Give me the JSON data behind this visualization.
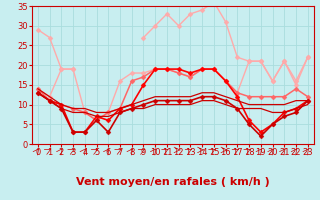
{
  "xlabel": "Vent moyen/en rafales ( km/h )",
  "background_color": "#c8eef0",
  "grid_color": "#aadddd",
  "xlim": [
    -0.5,
    23.5
  ],
  "ylim": [
    0,
    35
  ],
  "yticks": [
    0,
    5,
    10,
    15,
    20,
    25,
    30,
    35
  ],
  "xticks": [
    0,
    1,
    2,
    3,
    4,
    5,
    6,
    7,
    8,
    9,
    10,
    11,
    12,
    13,
    14,
    15,
    16,
    17,
    18,
    19,
    20,
    21,
    22,
    23
  ],
  "series": [
    {
      "y": [
        29,
        27,
        19,
        19,
        null,
        null,
        null,
        null,
        null,
        27,
        30,
        33,
        30,
        33,
        34,
        36,
        31,
        22,
        21,
        21,
        16,
        21,
        16,
        22
      ],
      "color": "#ffaaaa",
      "marker": "D",
      "markersize": 2.5,
      "linewidth": 1.0
    },
    {
      "y": [
        14,
        12,
        19,
        19,
        8,
        6,
        8,
        16,
        18,
        18,
        19,
        19,
        18,
        17,
        19,
        19,
        16,
        13,
        21,
        21,
        16,
        21,
        15,
        22
      ],
      "color": "#ffaaaa",
      "marker": "D",
      "markersize": 2.5,
      "linewidth": 1.0
    },
    {
      "y": [
        14,
        11,
        10,
        9,
        8,
        6,
        8,
        9,
        16,
        17,
        19,
        19,
        18,
        17,
        19,
        19,
        16,
        13,
        12,
        12,
        12,
        12,
        14,
        12
      ],
      "color": "#ff6666",
      "marker": "D",
      "markersize": 2.5,
      "linewidth": 1.1
    },
    {
      "y": [
        13,
        11,
        10,
        3,
        3,
        7,
        6,
        9,
        10,
        15,
        19,
        19,
        19,
        18,
        19,
        19,
        16,
        12,
        6,
        3,
        5,
        8,
        9,
        11
      ],
      "color": "#ff0000",
      "marker": "D",
      "markersize": 2.5,
      "linewidth": 1.2
    },
    {
      "y": [
        13,
        11,
        9,
        3,
        3,
        6,
        3,
        8,
        9,
        10,
        11,
        11,
        11,
        11,
        12,
        12,
        11,
        9,
        5,
        2,
        5,
        7,
        8,
        11
      ],
      "color": "#cc0000",
      "marker": "D",
      "markersize": 2.5,
      "linewidth": 1.2
    },
    {
      "y": [
        14,
        12,
        10,
        9,
        9,
        8,
        8,
        9,
        10,
        11,
        12,
        12,
        12,
        12,
        13,
        13,
        12,
        11,
        10,
        10,
        10,
        10,
        11,
        11
      ],
      "color": "#cc0000",
      "marker": null,
      "markersize": 0,
      "linewidth": 0.9
    },
    {
      "y": [
        13,
        11,
        9,
        8,
        8,
        7,
        7,
        8,
        9,
        9,
        10,
        10,
        10,
        10,
        11,
        11,
        10,
        9,
        9,
        9,
        8,
        8,
        9,
        10
      ],
      "color": "#cc0000",
      "marker": null,
      "markersize": 0,
      "linewidth": 0.9
    }
  ],
  "xlabel_fontsize": 8,
  "tick_fontsize": 6,
  "arrow_directions": [
    45,
    70,
    45,
    70,
    45,
    70,
    45,
    70,
    45,
    70,
    45,
    70,
    90,
    70,
    90,
    70,
    90,
    70,
    70,
    45,
    45,
    45,
    45,
    45
  ]
}
